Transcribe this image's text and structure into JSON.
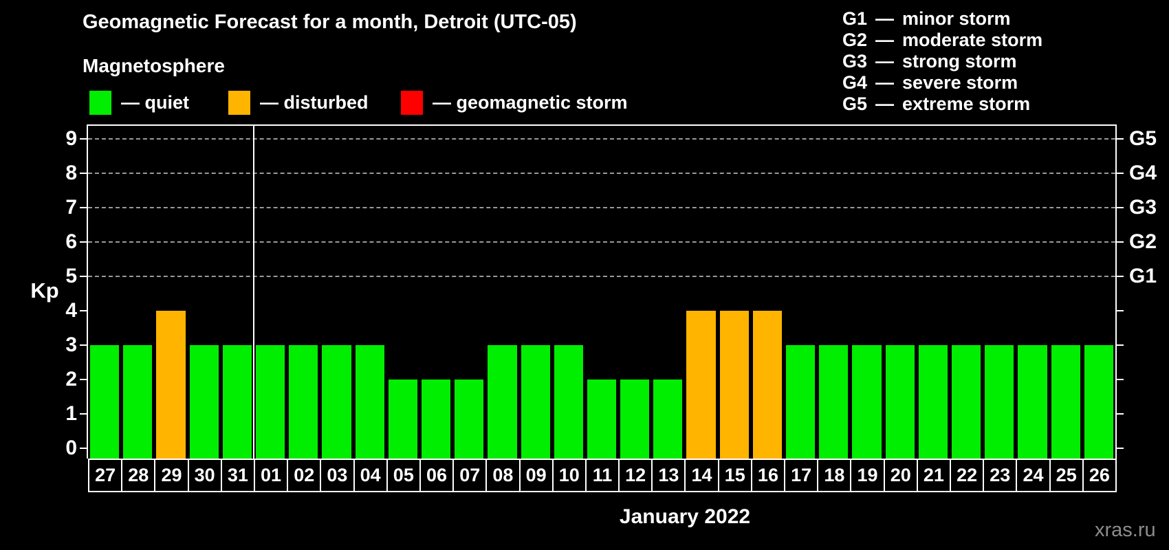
{
  "header": {
    "title": "Geomagnetic Forecast for a month, Detroit (UTC-05)",
    "subtitle": "Magnetosphere"
  },
  "legend": {
    "separator": "—",
    "items": [
      {
        "key": "quiet",
        "label": "quiet",
        "color": "#00ee00"
      },
      {
        "key": "disturbed",
        "label": "disturbed",
        "color": "#ffb400"
      },
      {
        "key": "storm",
        "label": "geomagnetic storm",
        "color": "#ff0000"
      }
    ]
  },
  "storm_scale_legend": {
    "separator": "—",
    "items": [
      {
        "code": "G1",
        "label": "minor storm"
      },
      {
        "code": "G2",
        "label": "moderate storm"
      },
      {
        "code": "G3",
        "label": "strong storm"
      },
      {
        "code": "G4",
        "label": "severe storm"
      },
      {
        "code": "G5",
        "label": "extreme storm"
      }
    ]
  },
  "axes": {
    "y_label": "Kp",
    "x_label": "January 2022",
    "y_ticks": [
      0,
      1,
      2,
      3,
      4,
      5,
      6,
      7,
      8,
      9
    ],
    "right_axis": [
      {
        "value": 5,
        "label": "G1"
      },
      {
        "value": 6,
        "label": "G2"
      },
      {
        "value": 7,
        "label": "G3"
      },
      {
        "value": 8,
        "label": "G4"
      },
      {
        "value": 9,
        "label": "G5"
      }
    ]
  },
  "watermark": "xras.ru",
  "chart_data": {
    "type": "bar",
    "title": "Geomagnetic Forecast for a month, Detroit (UTC-05)",
    "xlabel": "January 2022",
    "ylabel": "Kp",
    "ylim": [
      0,
      9
    ],
    "categories": [
      "27",
      "28",
      "29",
      "30",
      "31",
      "01",
      "02",
      "03",
      "04",
      "05",
      "06",
      "07",
      "08",
      "09",
      "10",
      "11",
      "12",
      "13",
      "14",
      "15",
      "16",
      "17",
      "18",
      "19",
      "20",
      "21",
      "22",
      "23",
      "24",
      "25",
      "26"
    ],
    "values": [
      3,
      3,
      4,
      3,
      3,
      3,
      3,
      3,
      3,
      2,
      2,
      2,
      3,
      3,
      3,
      2,
      2,
      2,
      4,
      4,
      4,
      3,
      3,
      3,
      3,
      3,
      3,
      3,
      3,
      3,
      3
    ],
    "statuses": [
      "quiet",
      "quiet",
      "disturbed",
      "quiet",
      "quiet",
      "quiet",
      "quiet",
      "quiet",
      "quiet",
      "quiet",
      "quiet",
      "quiet",
      "quiet",
      "quiet",
      "quiet",
      "quiet",
      "quiet",
      "quiet",
      "disturbed",
      "disturbed",
      "disturbed",
      "quiet",
      "quiet",
      "quiet",
      "quiet",
      "quiet",
      "quiet",
      "quiet",
      "quiet",
      "quiet",
      "quiet"
    ],
    "colors": {
      "quiet": "#00ee00",
      "disturbed": "#ffb400",
      "storm": "#ff0000"
    },
    "gridlines": [
      5,
      6,
      7,
      8,
      9
    ],
    "month_boundary_after_index": 4,
    "legend_position": "top"
  }
}
